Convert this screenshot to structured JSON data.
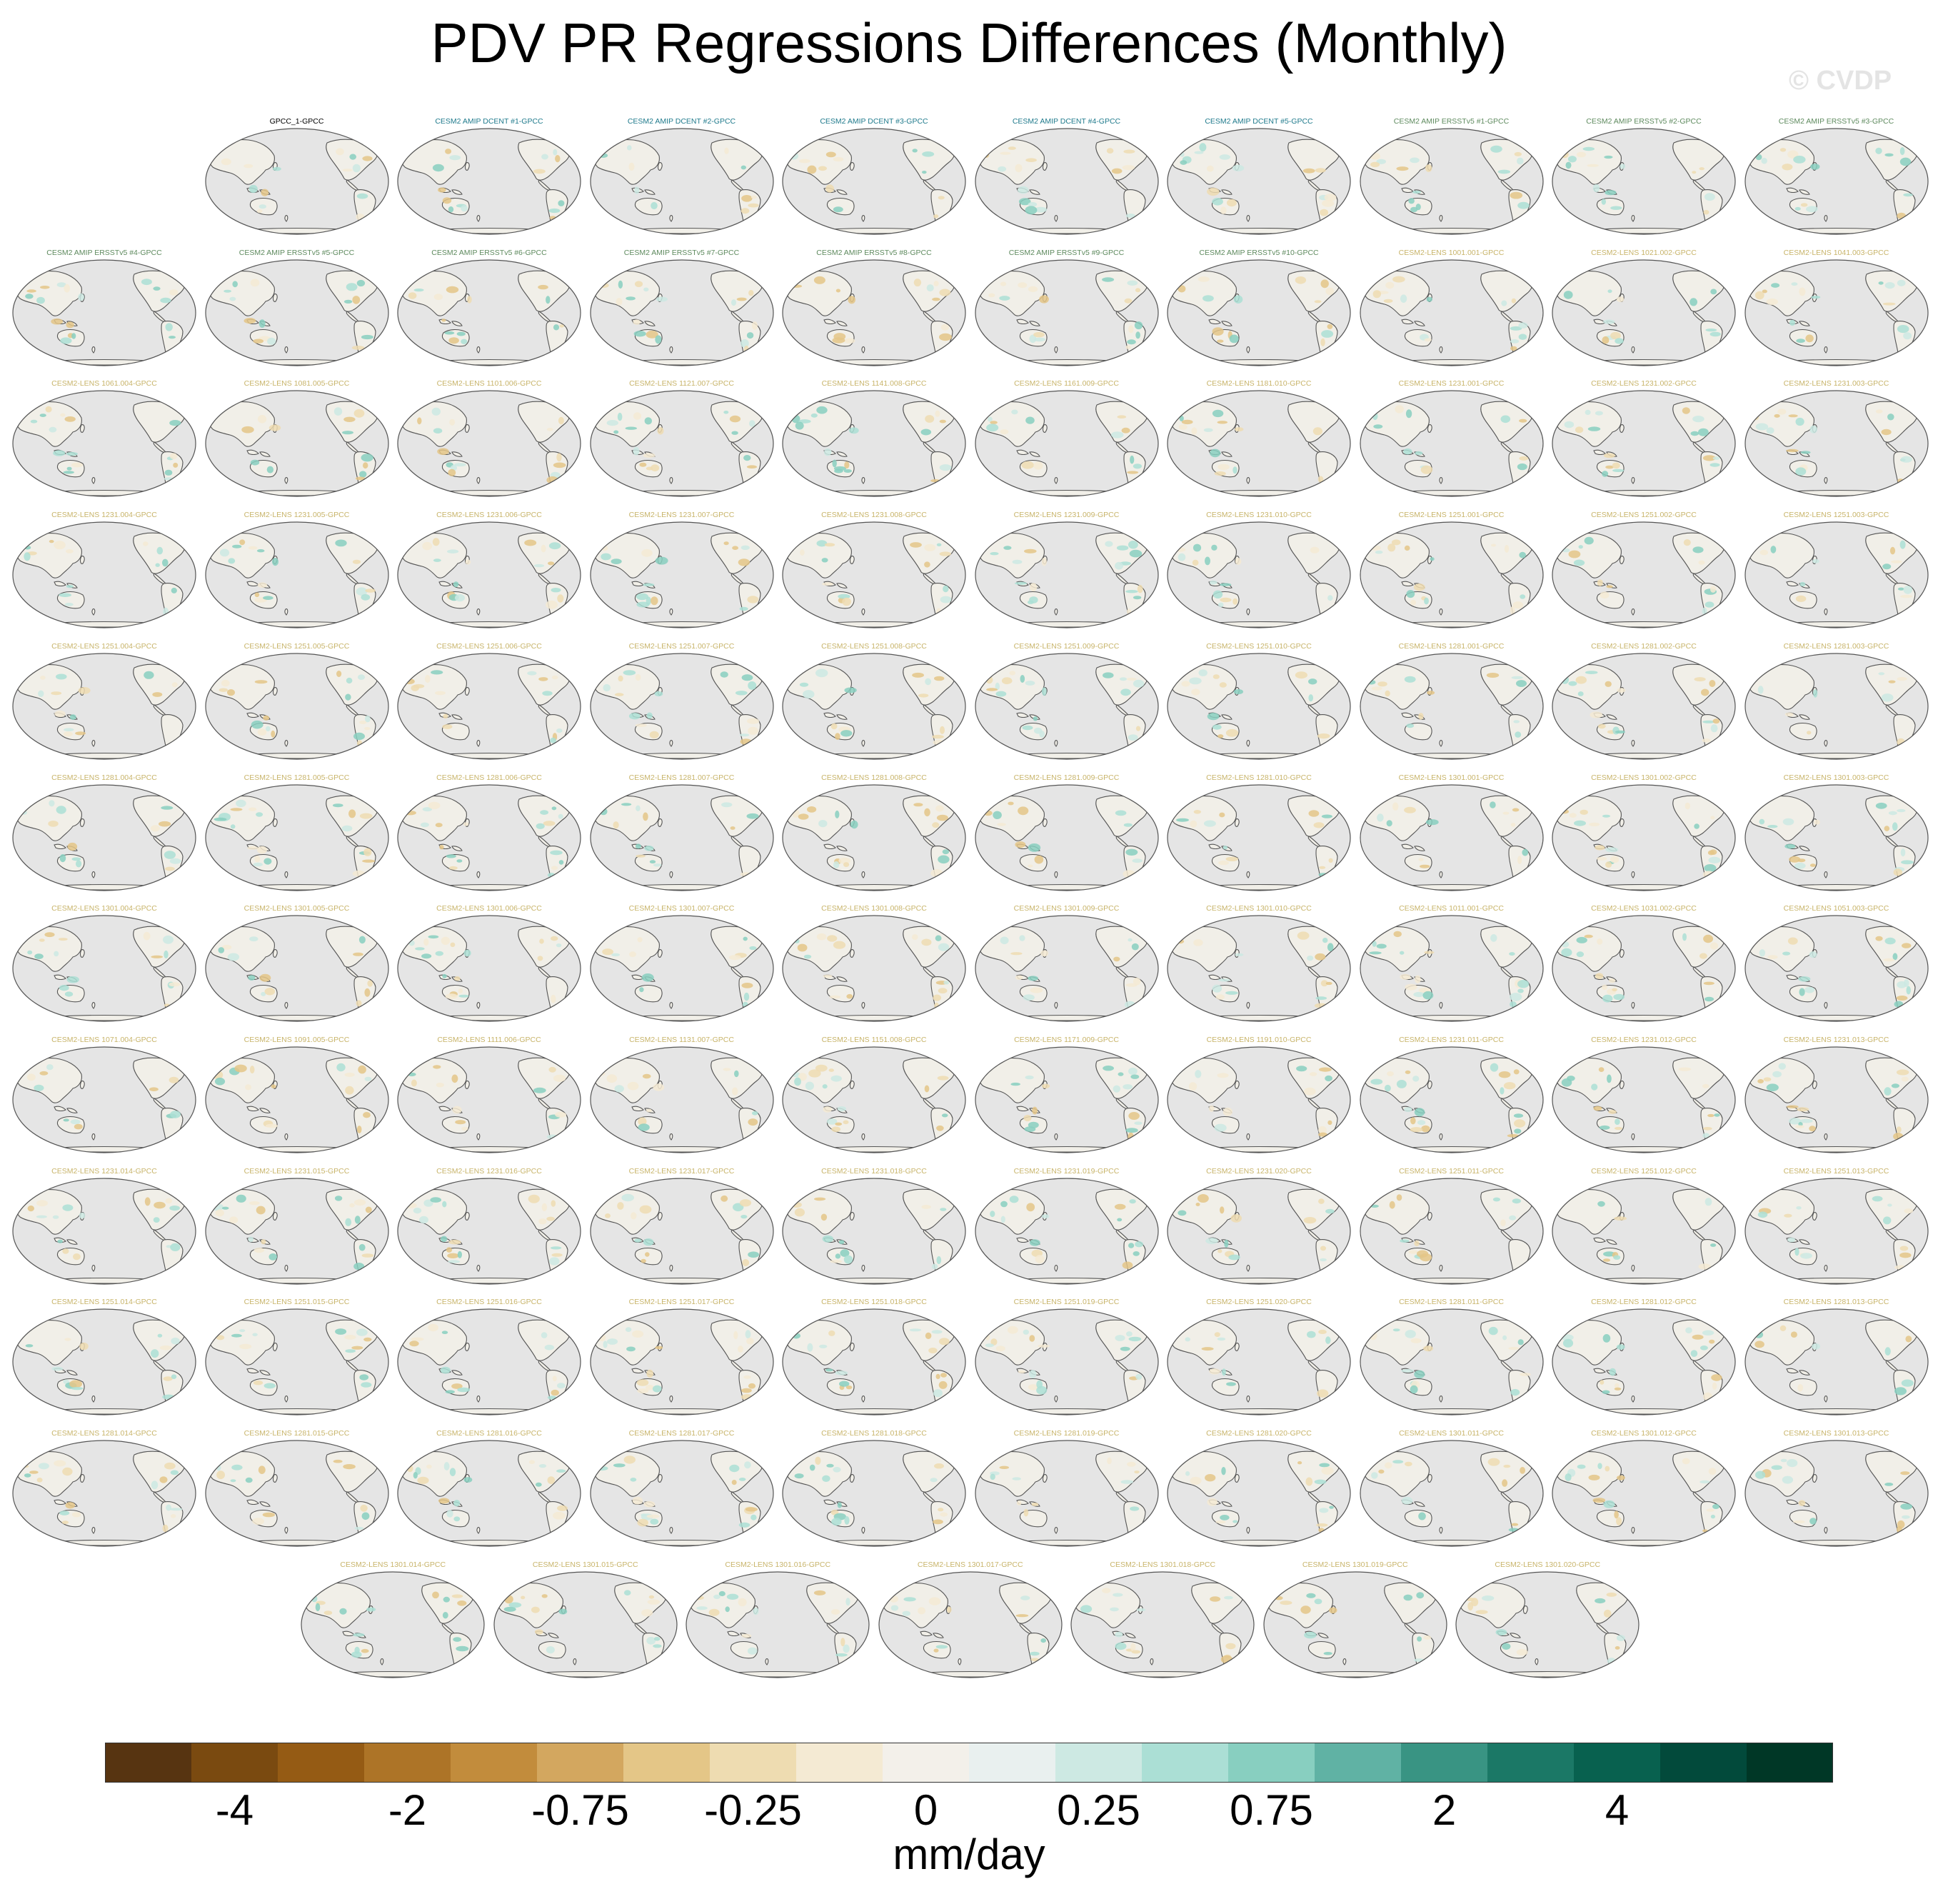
{
  "title": "PDV PR Regressions Differences (Monthly)",
  "watermark": "© CVDP",
  "panels": [
    {
      "label": "GPCC_1-GPCC",
      "group": "obs"
    },
    {
      "label": "CESM2 AMIP DCENT #1-GPCC",
      "group": "dcent"
    },
    {
      "label": "CESM2 AMIP DCENT #2-GPCC",
      "group": "dcent"
    },
    {
      "label": "CESM2 AMIP DCENT #3-GPCC",
      "group": "dcent"
    },
    {
      "label": "CESM2 AMIP DCENT #4-GPCC",
      "group": "dcent"
    },
    {
      "label": "CESM2 AMIP DCENT #5-GPCC",
      "group": "dcent"
    },
    {
      "label": "CESM2 AMIP ERSSTv5 #1-GPCC",
      "group": "ersst"
    },
    {
      "label": "CESM2 AMIP ERSSTv5 #2-GPCC",
      "group": "ersst"
    },
    {
      "label": "CESM2 AMIP ERSSTv5 #3-GPCC",
      "group": "ersst"
    },
    {
      "label": "CESM2 AMIP ERSSTv5 #4-GPCC",
      "group": "ersst"
    },
    {
      "label": "CESM2 AMIP ERSSTv5 #5-GPCC",
      "group": "ersst"
    },
    {
      "label": "CESM2 AMIP ERSSTv5 #6-GPCC",
      "group": "ersst"
    },
    {
      "label": "CESM2 AMIP ERSSTv5 #7-GPCC",
      "group": "ersst"
    },
    {
      "label": "CESM2 AMIP ERSSTv5 #8-GPCC",
      "group": "ersst"
    },
    {
      "label": "CESM2 AMIP ERSSTv5 #9-GPCC",
      "group": "ersst"
    },
    {
      "label": "CESM2 AMIP ERSSTv5 #10-GPCC",
      "group": "ersst"
    },
    {
      "label": "CESM2-LENS 1001.001-GPCC",
      "group": "lens"
    },
    {
      "label": "CESM2-LENS 1021.002-GPCC",
      "group": "lens"
    },
    {
      "label": "CESM2-LENS 1041.003-GPCC",
      "group": "lens"
    },
    {
      "label": "CESM2-LENS 1061.004-GPCC",
      "group": "lens"
    },
    {
      "label": "CESM2-LENS 1081.005-GPCC",
      "group": "lens"
    },
    {
      "label": "CESM2-LENS 1101.006-GPCC",
      "group": "lens"
    },
    {
      "label": "CESM2-LENS 1121.007-GPCC",
      "group": "lens"
    },
    {
      "label": "CESM2-LENS 1141.008-GPCC",
      "group": "lens"
    },
    {
      "label": "CESM2-LENS 1161.009-GPCC",
      "group": "lens"
    },
    {
      "label": "CESM2-LENS 1181.010-GPCC",
      "group": "lens"
    },
    {
      "label": "CESM2-LENS 1231.001-GPCC",
      "group": "lens"
    },
    {
      "label": "CESM2-LENS 1231.002-GPCC",
      "group": "lens"
    },
    {
      "label": "CESM2-LENS 1231.003-GPCC",
      "group": "lens"
    },
    {
      "label": "CESM2-LENS 1231.004-GPCC",
      "group": "lens"
    },
    {
      "label": "CESM2-LENS 1231.005-GPCC",
      "group": "lens"
    },
    {
      "label": "CESM2-LENS 1231.006-GPCC",
      "group": "lens"
    },
    {
      "label": "CESM2-LENS 1231.007-GPCC",
      "group": "lens"
    },
    {
      "label": "CESM2-LENS 1231.008-GPCC",
      "group": "lens"
    },
    {
      "label": "CESM2-LENS 1231.009-GPCC",
      "group": "lens"
    },
    {
      "label": "CESM2-LENS 1231.010-GPCC",
      "group": "lens"
    },
    {
      "label": "CESM2-LENS 1251.001-GPCC",
      "group": "lens"
    },
    {
      "label": "CESM2-LENS 1251.002-GPCC",
      "group": "lens"
    },
    {
      "label": "CESM2-LENS 1251.003-GPCC",
      "group": "lens"
    },
    {
      "label": "CESM2-LENS 1251.004-GPCC",
      "group": "lens"
    },
    {
      "label": "CESM2-LENS 1251.005-GPCC",
      "group": "lens"
    },
    {
      "label": "CESM2-LENS 1251.006-GPCC",
      "group": "lens"
    },
    {
      "label": "CESM2-LENS 1251.007-GPCC",
      "group": "lens"
    },
    {
      "label": "CESM2-LENS 1251.008-GPCC",
      "group": "lens"
    },
    {
      "label": "CESM2-LENS 1251.009-GPCC",
      "group": "lens"
    },
    {
      "label": "CESM2-LENS 1251.010-GPCC",
      "group": "lens"
    },
    {
      "label": "CESM2-LENS 1281.001-GPCC",
      "group": "lens"
    },
    {
      "label": "CESM2-LENS 1281.002-GPCC",
      "group": "lens"
    },
    {
      "label": "CESM2-LENS 1281.003-GPCC",
      "group": "lens"
    },
    {
      "label": "CESM2-LENS 1281.004-GPCC",
      "group": "lens"
    },
    {
      "label": "CESM2-LENS 1281.005-GPCC",
      "group": "lens"
    },
    {
      "label": "CESM2-LENS 1281.006-GPCC",
      "group": "lens"
    },
    {
      "label": "CESM2-LENS 1281.007-GPCC",
      "group": "lens"
    },
    {
      "label": "CESM2-LENS 1281.008-GPCC",
      "group": "lens"
    },
    {
      "label": "CESM2-LENS 1281.009-GPCC",
      "group": "lens"
    },
    {
      "label": "CESM2-LENS 1281.010-GPCC",
      "group": "lens"
    },
    {
      "label": "CESM2-LENS 1301.001-GPCC",
      "group": "lens"
    },
    {
      "label": "CESM2-LENS 1301.002-GPCC",
      "group": "lens"
    },
    {
      "label": "CESM2-LENS 1301.003-GPCC",
      "group": "lens"
    },
    {
      "label": "CESM2-LENS 1301.004-GPCC",
      "group": "lens"
    },
    {
      "label": "CESM2-LENS 1301.005-GPCC",
      "group": "lens"
    },
    {
      "label": "CESM2-LENS 1301.006-GPCC",
      "group": "lens"
    },
    {
      "label": "CESM2-LENS 1301.007-GPCC",
      "group": "lens"
    },
    {
      "label": "CESM2-LENS 1301.008-GPCC",
      "group": "lens"
    },
    {
      "label": "CESM2-LENS 1301.009-GPCC",
      "group": "lens"
    },
    {
      "label": "CESM2-LENS 1301.010-GPCC",
      "group": "lens"
    },
    {
      "label": "CESM2-LENS 1011.001-GPCC",
      "group": "lens"
    },
    {
      "label": "CESM2-LENS 1031.002-GPCC",
      "group": "lens"
    },
    {
      "label": "CESM2-LENS 1051.003-GPCC",
      "group": "lens"
    },
    {
      "label": "CESM2-LENS 1071.004-GPCC",
      "group": "lens"
    },
    {
      "label": "CESM2-LENS 1091.005-GPCC",
      "group": "lens"
    },
    {
      "label": "CESM2-LENS 1111.006-GPCC",
      "group": "lens"
    },
    {
      "label": "CESM2-LENS 1131.007-GPCC",
      "group": "lens"
    },
    {
      "label": "CESM2-LENS 1151.008-GPCC",
      "group": "lens"
    },
    {
      "label": "CESM2-LENS 1171.009-GPCC",
      "group": "lens"
    },
    {
      "label": "CESM2-LENS 1191.010-GPCC",
      "group": "lens"
    },
    {
      "label": "CESM2-LENS 1231.011-GPCC",
      "group": "lens"
    },
    {
      "label": "CESM2-LENS 1231.012-GPCC",
      "group": "lens"
    },
    {
      "label": "CESM2-LENS 1231.013-GPCC",
      "group": "lens"
    },
    {
      "label": "CESM2-LENS 1231.014-GPCC",
      "group": "lens"
    },
    {
      "label": "CESM2-LENS 1231.015-GPCC",
      "group": "lens"
    },
    {
      "label": "CESM2-LENS 1231.016-GPCC",
      "group": "lens"
    },
    {
      "label": "CESM2-LENS 1231.017-GPCC",
      "group": "lens"
    },
    {
      "label": "CESM2-LENS 1231.018-GPCC",
      "group": "lens"
    },
    {
      "label": "CESM2-LENS 1231.019-GPCC",
      "group": "lens"
    },
    {
      "label": "CESM2-LENS 1231.020-GPCC",
      "group": "lens"
    },
    {
      "label": "CESM2-LENS 1251.011-GPCC",
      "group": "lens"
    },
    {
      "label": "CESM2-LENS 1251.012-GPCC",
      "group": "lens"
    },
    {
      "label": "CESM2-LENS 1251.013-GPCC",
      "group": "lens"
    },
    {
      "label": "CESM2-LENS 1251.014-GPCC",
      "group": "lens"
    },
    {
      "label": "CESM2-LENS 1251.015-GPCC",
      "group": "lens"
    },
    {
      "label": "CESM2-LENS 1251.016-GPCC",
      "group": "lens"
    },
    {
      "label": "CESM2-LENS 1251.017-GPCC",
      "group": "lens"
    },
    {
      "label": "CESM2-LENS 1251.018-GPCC",
      "group": "lens"
    },
    {
      "label": "CESM2-LENS 1251.019-GPCC",
      "group": "lens"
    },
    {
      "label": "CESM2-LENS 1251.020-GPCC",
      "group": "lens"
    },
    {
      "label": "CESM2-LENS 1281.011-GPCC",
      "group": "lens"
    },
    {
      "label": "CESM2-LENS 1281.012-GPCC",
      "group": "lens"
    },
    {
      "label": "CESM2-LENS 1281.013-GPCC",
      "group": "lens"
    },
    {
      "label": "CESM2-LENS 1281.014-GPCC",
      "group": "lens"
    },
    {
      "label": "CESM2-LENS 1281.015-GPCC",
      "group": "lens"
    },
    {
      "label": "CESM2-LENS 1281.016-GPCC",
      "group": "lens"
    },
    {
      "label": "CESM2-LENS 1281.017-GPCC",
      "group": "lens"
    },
    {
      "label": "CESM2-LENS 1281.018-GPCC",
      "group": "lens"
    },
    {
      "label": "CESM2-LENS 1281.019-GPCC",
      "group": "lens"
    },
    {
      "label": "CESM2-LENS 1281.020-GPCC",
      "group": "lens"
    },
    {
      "label": "CESM2-LENS 1301.011-GPCC",
      "group": "lens"
    },
    {
      "label": "CESM2-LENS 1301.012-GPCC",
      "group": "lens"
    },
    {
      "label": "CESM2-LENS 1301.013-GPCC",
      "group": "lens"
    },
    {
      "label": "CESM2-LENS 1301.014-GPCC",
      "group": "lens"
    },
    {
      "label": "CESM2-LENS 1301.015-GPCC",
      "group": "lens"
    },
    {
      "label": "CESM2-LENS 1301.016-GPCC",
      "group": "lens"
    },
    {
      "label": "CESM2-LENS 1301.017-GPCC",
      "group": "lens"
    },
    {
      "label": "CESM2-LENS 1301.018-GPCC",
      "group": "lens"
    },
    {
      "label": "CESM2-LENS 1301.019-GPCC",
      "group": "lens"
    },
    {
      "label": "CESM2-LENS 1301.020-GPCC",
      "group": "lens"
    }
  ],
  "colors": {
    "title_obs": "#000000",
    "title_dcent": "#1f7a8c",
    "title_ersst": "#5e8a5e",
    "title_lens": "#c8b46a",
    "ocean": "#e5e5e5",
    "coast": "#555555",
    "frame": "#555555"
  },
  "colorbar": {
    "units": "mm/day",
    "colors": [
      "#573411",
      "#7a4a10",
      "#955b14",
      "#ad7427",
      "#c28c3c",
      "#d3a75f",
      "#e4c687",
      "#eedcb1",
      "#f4ead3",
      "#f3f0ea",
      "#e9f0ef",
      "#cde9e3",
      "#abdfd5",
      "#88cfc0",
      "#60b2a4",
      "#399483",
      "#1b7866",
      "#08614f",
      "#024a3b",
      "#003726"
    ],
    "tick_labels": [
      "-4",
      "-2",
      "-0.75",
      "-0.25",
      "0",
      "0.25",
      "0.75",
      "2",
      "4"
    ],
    "tick_boundaries": [
      2,
      4,
      6,
      8,
      10,
      12,
      14,
      16,
      18
    ]
  }
}
